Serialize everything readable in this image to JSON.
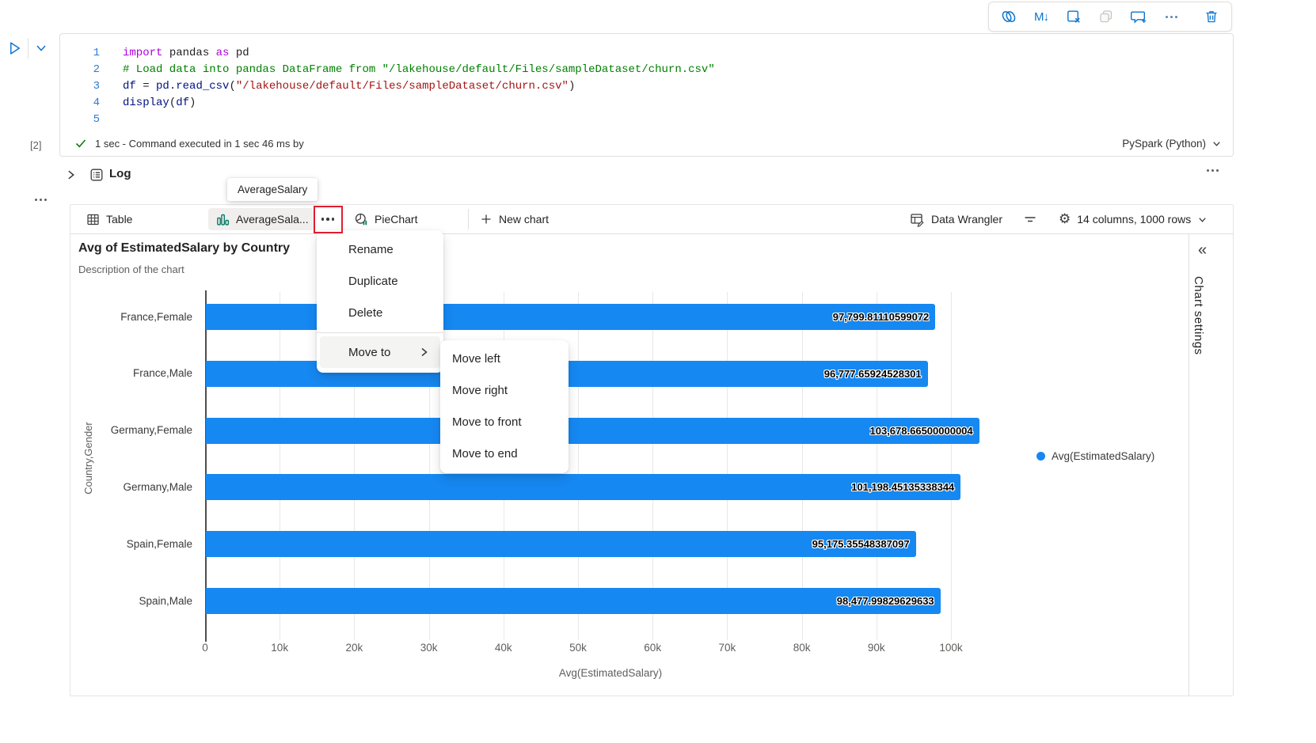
{
  "toolbar": {
    "icons": [
      "copilot-icon",
      "markdown-icon",
      "clear-cell-icon",
      "copy-icon",
      "comment-add-icon",
      "more-icon",
      "delete-icon"
    ],
    "markdown_glyph": "M↓"
  },
  "run_controls": {
    "icons": [
      "run-icon",
      "collapse-cell-icon"
    ]
  },
  "code_cell": {
    "execution_count": "[2]",
    "lines": [
      {
        "n": "1",
        "tokens": [
          [
            "kw",
            "import"
          ],
          [
            "pl",
            " pandas "
          ],
          [
            "kw",
            "as"
          ],
          [
            "pl",
            " pd"
          ]
        ]
      },
      {
        "n": "2",
        "tokens": [
          [
            "cm",
            "# Load data into pandas DataFrame from \"/lakehouse/default/Files/sampleDataset/churn.csv\""
          ]
        ]
      },
      {
        "n": "3",
        "tokens": [
          [
            "id",
            "df"
          ],
          [
            "pl",
            " = "
          ],
          [
            "id",
            "pd"
          ],
          [
            "pl",
            "."
          ],
          [
            "id",
            "read_csv"
          ],
          [
            "pl",
            "("
          ],
          [
            "st",
            "\"/lakehouse/default/Files/sampleDataset/churn.csv\""
          ],
          [
            "pl",
            ")"
          ]
        ]
      },
      {
        "n": "4",
        "tokens": [
          [
            "id",
            "display"
          ],
          [
            "pl",
            "("
          ],
          [
            "id",
            "df"
          ],
          [
            "pl",
            ")"
          ]
        ]
      },
      {
        "n": "5",
        "tokens": []
      }
    ],
    "status_text": "1 sec - Command executed in 1 sec 46 ms by",
    "kernel": "PySpark (Python)"
  },
  "log": {
    "label": "Log",
    "icons": [
      "chevron-right-icon",
      "log-icon",
      "more-icon"
    ]
  },
  "tooltip": {
    "text": "AverageSalary"
  },
  "tab_bar": {
    "table_label": "Table",
    "chart_tab_label": "AverageSala...",
    "pie_label": "PieChart",
    "new_chart_label": "New chart",
    "data_wrangler_label": "Data Wrangler",
    "summary_label": "14 columns, 1000 rows",
    "gear_glyph": "⚙",
    "icons": [
      "table-grid-icon",
      "bar-chart-icon",
      "more-icon",
      "pie-chart-icon",
      "plus-icon",
      "data-wrangler-icon",
      "filter-icon",
      "gear-icon",
      "chevron-down-icon"
    ]
  },
  "context_menu": {
    "items": [
      "Rename",
      "Duplicate",
      "Delete"
    ],
    "move_to_label": "Move to",
    "submenu_items": [
      "Move left",
      "Move right",
      "Move to front",
      "Move to end"
    ]
  },
  "chart": {
    "title": "Avg of EstimatedSalary by Country",
    "subtitle": "Description of the chart",
    "legend_label": "Avg(EstimatedSalary)",
    "settings_label": "Chart settings",
    "collapse_glyph": "«"
  },
  "chart_data": {
    "type": "bar",
    "orientation": "horizontal",
    "title": "Avg of EstimatedSalary by Country",
    "xlabel": "Avg(EstimatedSalary)",
    "ylabel": "Country,Gender",
    "categories": [
      "France,Female",
      "France,Male",
      "Germany,Female",
      "Germany,Male",
      "Spain,Female",
      "Spain,Male"
    ],
    "values": [
      97799.81110599072,
      96777.65924528301,
      103678.66500000004,
      101198.45135338344,
      95175.35548387097,
      98477.99829629633
    ],
    "value_labels": [
      "97,799.81110599072",
      "96,777.65924528301",
      "103,678.66500000004",
      "101,198.45135338344",
      "95,175.35548387097",
      "98,477.99829629633"
    ],
    "x_ticks": [
      "0",
      "10k",
      "20k",
      "30k",
      "40k",
      "50k",
      "60k",
      "70k",
      "80k",
      "90k",
      "100k"
    ],
    "xlim": [
      0,
      100000
    ],
    "grid": true,
    "legend": [
      "Avg(EstimatedSalary)"
    ],
    "legend_position": "right",
    "bar_color": "#1688F2"
  },
  "colors": {
    "accent_blue": "#0b74cf",
    "bar_blue": "#1688F2",
    "teal_icon": "#0e7a66",
    "red_annotation": "#e11d2e",
    "success_green": "#107c10"
  }
}
